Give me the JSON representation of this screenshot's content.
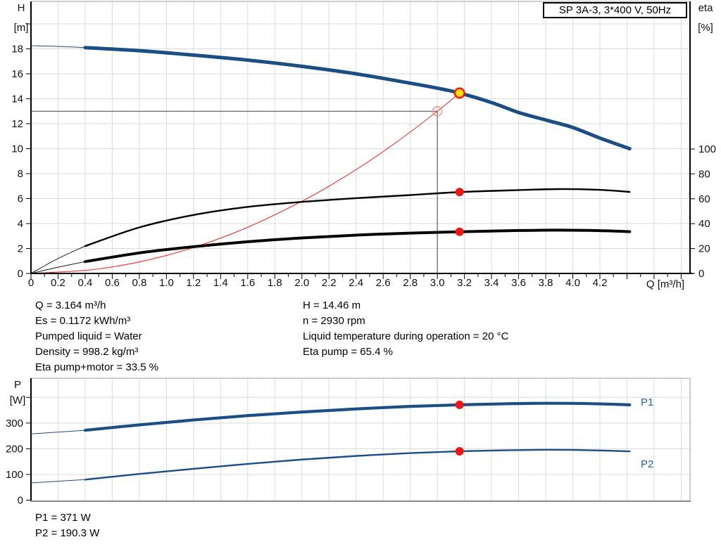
{
  "title_box": "SP 3A-3, 3*400 V, 50Hz",
  "info_panel": {
    "left": [
      "Q = 3.164 m³/h",
      "Es = 0.1172 kWh/m³",
      "Pumped liquid = Water",
      "Density = 998.2 kg/m³",
      "Eta pump+motor = 33.5 %"
    ],
    "right": [
      "H = 14.46 m",
      "n = 2930 rpm",
      "Liquid temperature during operation = 20 °C",
      "Eta pump = 65.4 %"
    ]
  },
  "results_panel": [
    "P1 = 371 W",
    "P2 = 190.3 W"
  ],
  "colors": {
    "curve_blue": "#1A4E85",
    "curve_black": "#000000",
    "system_red": "#F03228",
    "marker_red": "#F01616",
    "duty_yellow": "#FFE000",
    "duty_ring": "#FF1010",
    "open_circle": "#F28C86",
    "crosshair": "#444444",
    "grid": "#d8dbde",
    "frame_light": "#b9bec3",
    "frame_dark": "#85898d",
    "label_blue": "#1E62B0"
  },
  "chart_data": [
    {
      "type": "line",
      "title": "SP 3A-3, 3*400 V, 50Hz",
      "x_axis": {
        "label": "Q [m³/h]",
        "min": 0,
        "max": 4.86,
        "major_step": 0.2,
        "minor_step": 0.1,
        "tick_labels": [
          "0",
          "0.2",
          "0.4",
          "0.6",
          "0.8",
          "1.0",
          "1.2",
          "1.4",
          "1.6",
          "1.8",
          "2.0",
          "2.2",
          "2.4",
          "2.6",
          "2.8",
          "3.0",
          "3.2",
          "3.4",
          "3.6",
          "3.8",
          "4.0",
          "4.2"
        ]
      },
      "y_axis_left": {
        "name": "H",
        "unit": "[m]",
        "min": 0,
        "max": 21.8,
        "tick_step": 2,
        "tick_labels": [
          "0",
          "2",
          "4",
          "6",
          "8",
          "10",
          "12",
          "14",
          "16",
          "18"
        ],
        "extra_unlabeled_ticks": [
          20
        ]
      },
      "y_axis_right": {
        "name": "eta",
        "unit": "[%]",
        "min": 0,
        "max": 100,
        "tick_step": 20,
        "tick_labels": [
          "0",
          "20",
          "40",
          "60",
          "80",
          "100"
        ]
      },
      "grid": true,
      "series": [
        {
          "name": "system curve",
          "key": "system-curve",
          "axis": "left",
          "color": "#F03228",
          "width": 1.1,
          "points": [
            [
              0,
              0
            ],
            [
              0.5,
              0.36
            ],
            [
              1.0,
              1.44
            ],
            [
              1.5,
              3.25
            ],
            [
              2.0,
              5.78
            ],
            [
              2.4,
              8.32
            ],
            [
              2.7,
              10.53
            ],
            [
              3.0,
              13.0
            ],
            [
              3.164,
              14.46
            ]
          ]
        },
        {
          "name": "eta pump",
          "key": "curve-eta-pump",
          "axis": "right",
          "color": "#000000",
          "width": 2.4,
          "width_thin": 0.9,
          "thin_until": 0.4,
          "points": [
            [
              0,
              0
            ],
            [
              0.2,
              12
            ],
            [
              0.4,
              22
            ],
            [
              0.8,
              37
            ],
            [
              1.2,
              47
            ],
            [
              1.6,
              53.5
            ],
            [
              2.0,
              57.5
            ],
            [
              2.4,
              60.5
            ],
            [
              2.8,
              63
            ],
            [
              3.164,
              65.4
            ],
            [
              3.6,
              67
            ],
            [
              3.9,
              67.8
            ],
            [
              4.2,
              67.2
            ],
            [
              4.42,
              65.5
            ]
          ]
        },
        {
          "name": "eta pump+motor",
          "key": "curve-eta-pump-motor",
          "axis": "right",
          "color": "#000000",
          "width": 4,
          "width_thin": 0.9,
          "thin_until": 0.4,
          "points": [
            [
              0,
              0
            ],
            [
              0.2,
              5
            ],
            [
              0.4,
              9.5
            ],
            [
              0.8,
              16.5
            ],
            [
              1.2,
              21.5
            ],
            [
              1.6,
              25.5
            ],
            [
              2.0,
              28.5
            ],
            [
              2.4,
              30.8
            ],
            [
              2.8,
              32.4
            ],
            [
              3.164,
              33.5
            ],
            [
              3.6,
              34.5
            ],
            [
              3.9,
              34.8
            ],
            [
              4.2,
              34.4
            ],
            [
              4.42,
              33.6
            ]
          ]
        },
        {
          "name": "H curve",
          "key": "curve-h",
          "axis": "left",
          "color": "#1A4E85",
          "width": 5,
          "width_thin": 1,
          "thin_until": 0.4,
          "points": [
            [
              0,
              18.25
            ],
            [
              0.2,
              18.2
            ],
            [
              0.4,
              18.1
            ],
            [
              0.8,
              17.85
            ],
            [
              1.2,
              17.5
            ],
            [
              1.6,
              17.1
            ],
            [
              2.0,
              16.6
            ],
            [
              2.4,
              16.0
            ],
            [
              2.8,
              15.25
            ],
            [
              3.0,
              14.85
            ],
            [
              3.164,
              14.46
            ],
            [
              3.4,
              13.7
            ],
            [
              3.6,
              12.9
            ],
            [
              3.8,
              12.3
            ],
            [
              4.0,
              11.7
            ],
            [
              4.2,
              10.85
            ],
            [
              4.42,
              10.0
            ]
          ]
        }
      ],
      "markers": {
        "duty_point": {
          "q": 3.164,
          "h": 14.46
        },
        "requested_point": {
          "q": 3.0,
          "h": 13.0,
          "crosshair": true
        },
        "eta_dots": [
          {
            "q": 3.164,
            "eta": 65.4
          },
          {
            "q": 3.164,
            "eta": 33.5
          }
        ]
      }
    },
    {
      "type": "line",
      "title": "Power curves",
      "x_axis": {
        "label": "",
        "min": 0,
        "max": 4.86,
        "major_step": 0.2
      },
      "y_axis_left": {
        "name": "P",
        "unit": "[W]",
        "min": 0,
        "max": 474,
        "tick_step": 100,
        "tick_labels": [
          "0",
          "100",
          "200",
          "300"
        ],
        "extra_unlabeled_ticks": [
          400
        ]
      },
      "grid": true,
      "series": [
        {
          "name": "P1",
          "key": "curve-p1",
          "axis": "left",
          "color": "#1A4E85",
          "width": 4.2,
          "width_thin": 1,
          "thin_until": 0.4,
          "points": [
            [
              0,
              258
            ],
            [
              0.4,
              272
            ],
            [
              0.8,
              293
            ],
            [
              1.2,
              312
            ],
            [
              1.6,
              329
            ],
            [
              2.0,
              343
            ],
            [
              2.4,
              355
            ],
            [
              2.8,
              365
            ],
            [
              3.164,
              371
            ],
            [
              3.5,
              375
            ],
            [
              3.8,
              377
            ],
            [
              4.1,
              376
            ],
            [
              4.42,
              371
            ]
          ]
        },
        {
          "name": "P2",
          "key": "curve-p2",
          "axis": "left",
          "color": "#1A4E85",
          "width": 2.4,
          "width_thin": 0.9,
          "thin_until": 0.4,
          "points": [
            [
              0,
              67
            ],
            [
              0.4,
              80
            ],
            [
              0.8,
              102
            ],
            [
              1.2,
              122
            ],
            [
              1.6,
              141
            ],
            [
              2.0,
              158
            ],
            [
              2.4,
              172
            ],
            [
              2.8,
              183
            ],
            [
              3.164,
              190.3
            ],
            [
              3.5,
              194
            ],
            [
              3.8,
              196
            ],
            [
              4.1,
              194.5
            ],
            [
              4.42,
              190
            ]
          ]
        }
      ],
      "markers": {
        "power_dots": [
          {
            "q": 3.164,
            "p": 371
          },
          {
            "q": 3.164,
            "p": 190.3
          }
        ]
      }
    }
  ]
}
